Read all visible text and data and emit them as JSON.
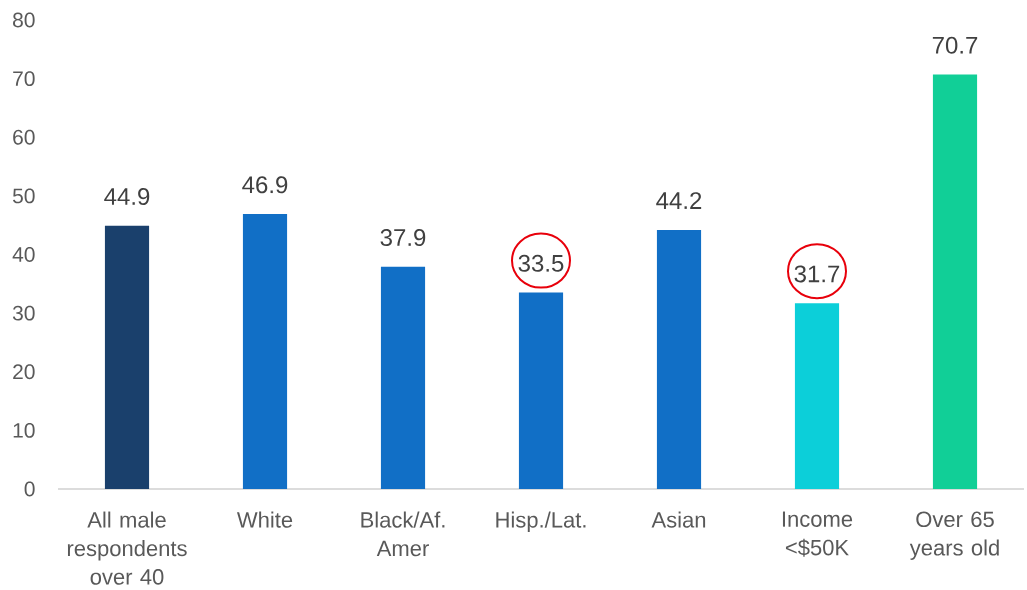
{
  "chart_data": {
    "type": "bar",
    "categories": [
      "All male respondents over 40",
      "White",
      "Black/Af. Amer",
      "Hisp./Lat.",
      "Asian",
      "Income <$50K",
      "Over 65 years old"
    ],
    "values": [
      44.9,
      46.9,
      37.9,
      33.5,
      44.2,
      31.7,
      70.7
    ],
    "colors": [
      "#1a406c",
      "#116fc6",
      "#116fc6",
      "#116fc6",
      "#116fc6",
      "#0ccfd9",
      "#11cf97"
    ],
    "ylim": [
      0,
      80
    ],
    "yticks": [
      0,
      10,
      20,
      30,
      40,
      50,
      60,
      70,
      80
    ],
    "data_labels": true
  }
}
